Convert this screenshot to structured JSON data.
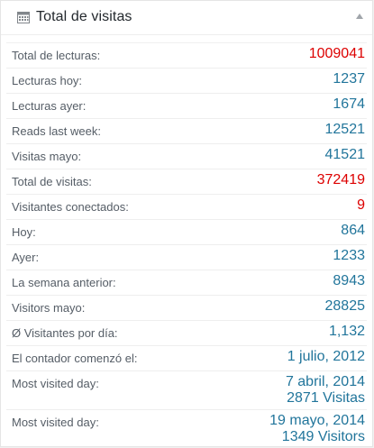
{
  "widget": {
    "title": "Total de visitas",
    "icon": "calendar-icon",
    "toggle_icon": "collapse-arrow-up-icon"
  },
  "colors": {
    "value_blue": "#21759b",
    "value_red": "#dd0000"
  },
  "stats": [
    {
      "label": "Total de lecturas:",
      "value": "1009041",
      "color": "red"
    },
    {
      "label": "Lecturas hoy:",
      "value": "1237",
      "color": "blue"
    },
    {
      "label": "Lecturas ayer:",
      "value": "1674",
      "color": "blue"
    },
    {
      "label": "Reads last week:",
      "value": "12521",
      "color": "blue"
    },
    {
      "label": "Visitas mayo:",
      "value": "41521",
      "color": "blue"
    },
    {
      "label": "Total de visitas:",
      "value": "372419",
      "color": "red"
    },
    {
      "label": "Visitantes conectados:",
      "value": "9",
      "color": "red"
    },
    {
      "label": "Hoy:",
      "value": "864",
      "color": "blue"
    },
    {
      "label": "Ayer:",
      "value": "1233",
      "color": "blue"
    },
    {
      "label": "La semana anterior:",
      "value": "8943",
      "color": "blue"
    },
    {
      "label": "Visitors mayo:",
      "value": "28825",
      "color": "blue"
    },
    {
      "label": "Ø Visitantes por día:",
      "value": "1,132",
      "color": "blue"
    },
    {
      "label": "El contador comenzó el:",
      "value": "1 julio, 2012",
      "color": "blue"
    },
    {
      "label": "Most visited day:",
      "value": "7 abril, 2014",
      "value2": "2871 Visitas",
      "color": "blue"
    },
    {
      "label": "Most visited day:",
      "value": "19 mayo, 2014",
      "value2": "1349 Visitors",
      "color": "blue"
    }
  ]
}
